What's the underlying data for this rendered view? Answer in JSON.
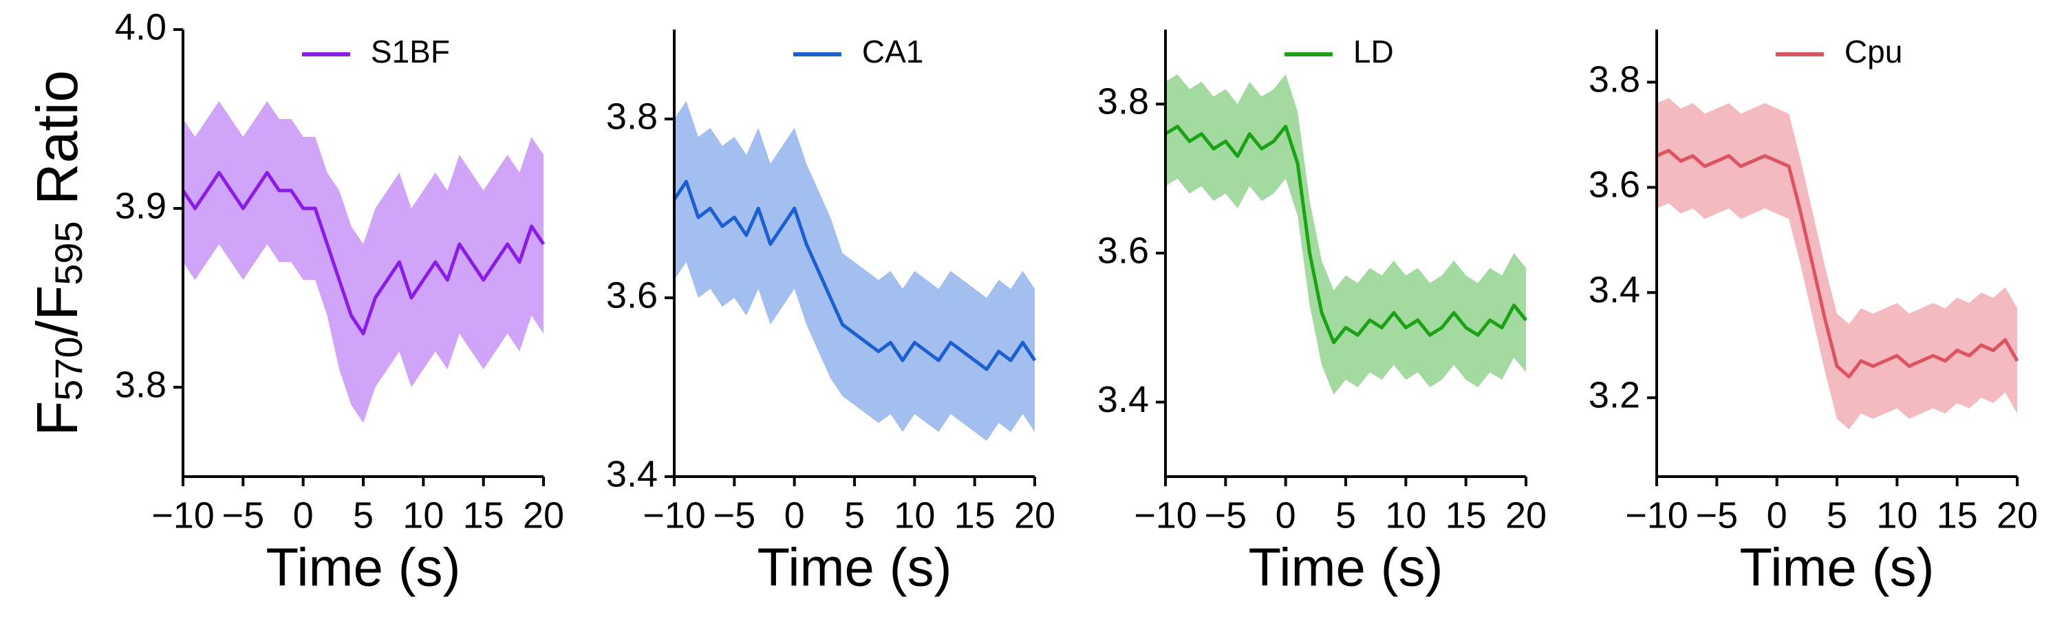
{
  "chart_data": [
    {
      "type": "line",
      "xlabel": "Time (s)",
      "ylabel": [
        "F",
        "570",
        "/F",
        "595",
        " Ratio"
      ],
      "x": [
        -10,
        -9,
        -8,
        -7,
        -6,
        -5,
        -4,
        -3,
        -2,
        -1,
        0,
        1,
        2,
        3,
        4,
        5,
        6,
        7,
        8,
        9,
        10,
        11,
        12,
        13,
        14,
        15,
        16,
        17,
        18,
        19,
        20
      ],
      "series": [
        {
          "name": "S1BF",
          "color": "#8a1bef",
          "values": [
            3.91,
            3.9,
            3.91,
            3.92,
            3.91,
            3.9,
            3.91,
            3.92,
            3.91,
            3.91,
            3.9,
            3.9,
            3.88,
            3.86,
            3.84,
            3.83,
            3.85,
            3.86,
            3.87,
            3.85,
            3.86,
            3.87,
            3.86,
            3.88,
            3.87,
            3.86,
            3.87,
            3.88,
            3.87,
            3.89,
            3.88
          ],
          "error": [
            0.04,
            0.04,
            0.04,
            0.04,
            0.04,
            0.04,
            0.04,
            0.04,
            0.04,
            0.04,
            0.04,
            0.04,
            0.04,
            0.05,
            0.05,
            0.05,
            0.05,
            0.05,
            0.05,
            0.05,
            0.05,
            0.05,
            0.05,
            0.05,
            0.05,
            0.05,
            0.05,
            0.05,
            0.05,
            0.05,
            0.05
          ]
        }
      ],
      "xlim": [
        -10,
        20
      ],
      "xticks": [
        {
          "value": -10,
          "label": "−10"
        },
        {
          "value": -5,
          "label": "−5"
        },
        0,
        5,
        10,
        15,
        20
      ],
      "ylim": [
        3.75,
        4.0
      ],
      "yticks": [
        3.8,
        3.9,
        {
          "value": 4.0,
          "label": "4.0"
        }
      ],
      "legend": "upper center",
      "grid": false
    },
    {
      "type": "line",
      "xlabel": "Time (s)",
      "x": [
        -10,
        -9,
        -8,
        -7,
        -6,
        -5,
        -4,
        -3,
        -2,
        -1,
        0,
        1,
        2,
        3,
        4,
        5,
        6,
        7,
        8,
        9,
        10,
        11,
        12,
        13,
        14,
        15,
        16,
        17,
        18,
        19,
        20
      ],
      "series": [
        {
          "name": "CA1",
          "color": "#1a5fd6",
          "values": [
            3.71,
            3.73,
            3.69,
            3.7,
            3.68,
            3.69,
            3.67,
            3.7,
            3.66,
            3.68,
            3.7,
            3.66,
            3.63,
            3.6,
            3.57,
            3.56,
            3.55,
            3.54,
            3.55,
            3.53,
            3.55,
            3.54,
            3.53,
            3.55,
            3.54,
            3.53,
            3.52,
            3.54,
            3.53,
            3.55,
            3.53
          ],
          "error": [
            0.09,
            0.09,
            0.09,
            0.09,
            0.09,
            0.09,
            0.09,
            0.09,
            0.09,
            0.09,
            0.09,
            0.09,
            0.09,
            0.09,
            0.08,
            0.08,
            0.08,
            0.08,
            0.08,
            0.08,
            0.08,
            0.08,
            0.08,
            0.08,
            0.08,
            0.08,
            0.08,
            0.08,
            0.08,
            0.08,
            0.08
          ]
        }
      ],
      "xlim": [
        -10,
        20
      ],
      "xticks": [
        {
          "value": -10,
          "label": "−10"
        },
        {
          "value": -5,
          "label": "−5"
        },
        0,
        5,
        10,
        15,
        20
      ],
      "ylim": [
        3.4,
        3.9
      ],
      "yticks": [
        3.4,
        3.6,
        3.8
      ],
      "legend": "upper center",
      "grid": false
    },
    {
      "type": "line",
      "xlabel": "Time (s)",
      "x": [
        -10,
        -9,
        -8,
        -7,
        -6,
        -5,
        -4,
        -3,
        -2,
        -1,
        0,
        1,
        2,
        3,
        4,
        5,
        6,
        7,
        8,
        9,
        10,
        11,
        12,
        13,
        14,
        15,
        16,
        17,
        18,
        19,
        20
      ],
      "series": [
        {
          "name": "LD",
          "color": "#1aa312",
          "values": [
            3.76,
            3.77,
            3.75,
            3.76,
            3.74,
            3.75,
            3.73,
            3.76,
            3.74,
            3.75,
            3.77,
            3.72,
            3.6,
            3.52,
            3.48,
            3.5,
            3.49,
            3.51,
            3.5,
            3.52,
            3.5,
            3.51,
            3.49,
            3.5,
            3.52,
            3.5,
            3.49,
            3.51,
            3.5,
            3.53,
            3.51
          ],
          "error": [
            0.07,
            0.07,
            0.07,
            0.07,
            0.07,
            0.07,
            0.07,
            0.07,
            0.07,
            0.07,
            0.07,
            0.07,
            0.07,
            0.07,
            0.07,
            0.07,
            0.07,
            0.07,
            0.07,
            0.07,
            0.07,
            0.07,
            0.07,
            0.07,
            0.07,
            0.07,
            0.07,
            0.07,
            0.07,
            0.07,
            0.07
          ]
        }
      ],
      "xlim": [
        -10,
        20
      ],
      "xticks": [
        {
          "value": -10,
          "label": "−10"
        },
        {
          "value": -5,
          "label": "−5"
        },
        0,
        5,
        10,
        15,
        20
      ],
      "ylim": [
        3.3,
        3.9
      ],
      "yticks": [
        3.4,
        3.6,
        3.8
      ],
      "legend": "upper center",
      "grid": false
    },
    {
      "type": "line",
      "xlabel": "Time (s)",
      "x": [
        -10,
        -9,
        -8,
        -7,
        -6,
        -5,
        -4,
        -3,
        -2,
        -1,
        0,
        1,
        2,
        3,
        4,
        5,
        6,
        7,
        8,
        9,
        10,
        11,
        12,
        13,
        14,
        15,
        16,
        17,
        18,
        19,
        20
      ],
      "series": [
        {
          "name": "Cpu",
          "color": "#e0525e",
          "values": [
            3.66,
            3.67,
            3.65,
            3.66,
            3.64,
            3.65,
            3.66,
            3.64,
            3.65,
            3.66,
            3.65,
            3.64,
            3.55,
            3.45,
            3.35,
            3.26,
            3.24,
            3.27,
            3.26,
            3.27,
            3.28,
            3.26,
            3.27,
            3.28,
            3.27,
            3.29,
            3.28,
            3.3,
            3.29,
            3.31,
            3.27
          ],
          "error": [
            0.1,
            0.1,
            0.1,
            0.1,
            0.1,
            0.1,
            0.1,
            0.1,
            0.1,
            0.1,
            0.1,
            0.1,
            0.1,
            0.1,
            0.1,
            0.1,
            0.1,
            0.1,
            0.1,
            0.1,
            0.1,
            0.1,
            0.1,
            0.1,
            0.1,
            0.1,
            0.1,
            0.1,
            0.1,
            0.1,
            0.1
          ]
        }
      ],
      "xlim": [
        -10,
        20
      ],
      "xticks": [
        {
          "value": -10,
          "label": "−10"
        },
        {
          "value": -5,
          "label": "−5"
        },
        0,
        5,
        10,
        15,
        20
      ],
      "ylim": [
        3.05,
        3.9
      ],
      "yticks": [
        3.2,
        3.4,
        3.6,
        3.8
      ],
      "legend": "upper center",
      "grid": false
    }
  ]
}
